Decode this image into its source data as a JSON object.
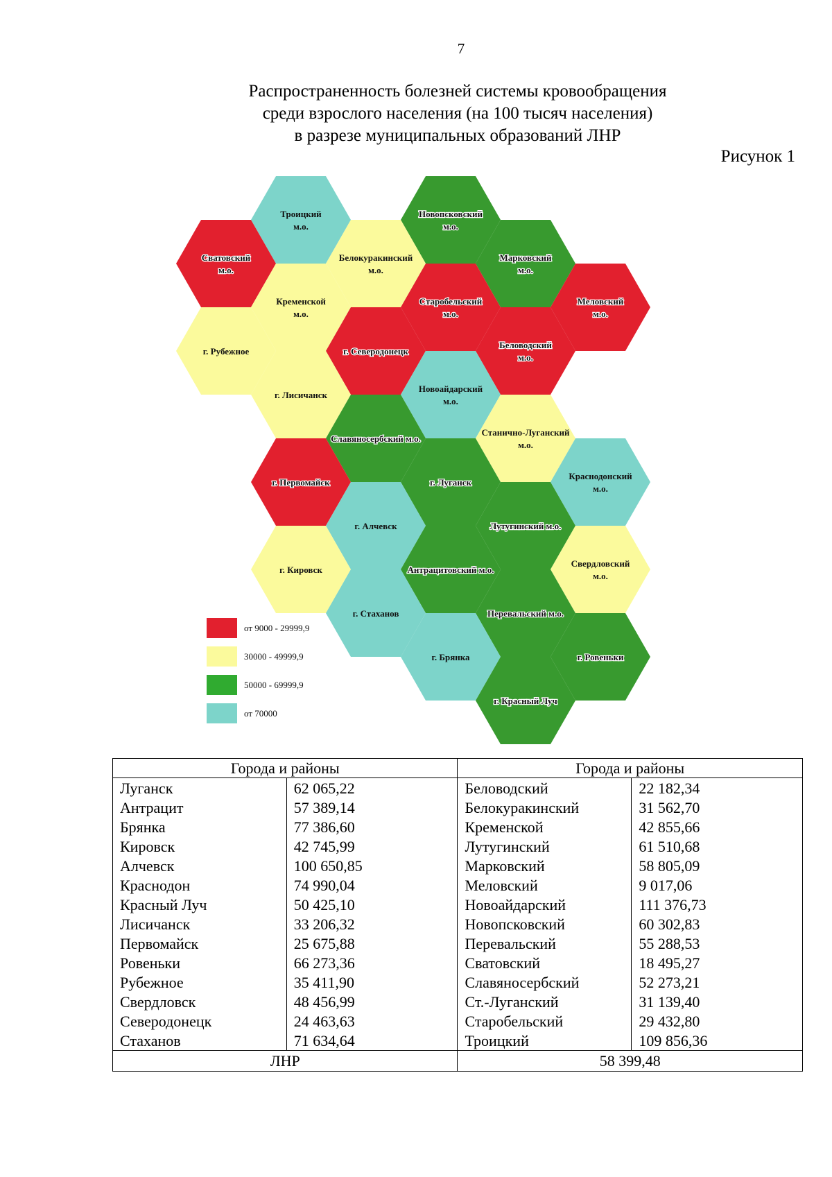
{
  "page_number": "7",
  "title_lines": [
    "Распространенность болезней системы кровообращения",
    "среди взрослого населения (на 100 тысяч населения)",
    "в разрезе муниципальных образований ЛНР"
  ],
  "figure_label": "Рисунок 1",
  "colors": {
    "red": "#e2202e",
    "yellow": "#fbfa9c",
    "green": "#389a2f",
    "teal": "#7dd4ca",
    "legend_green": "#30ab30"
  },
  "map": {
    "hexes": [
      {
        "id": "troitsky",
        "lines": [
          "Троицкий",
          "м.о."
        ],
        "color": "teal"
      },
      {
        "id": "novopskovsky",
        "lines": [
          "Новопсковский",
          "м.о."
        ],
        "color": "green"
      },
      {
        "id": "svatovsky",
        "lines": [
          "Сватовский",
          "м.о."
        ],
        "color": "red"
      },
      {
        "id": "belokurakinsky",
        "lines": [
          "Белокуракинский",
          "м.о."
        ],
        "color": "yellow"
      },
      {
        "id": "markovsky",
        "lines": [
          "Марковский",
          "м.о."
        ],
        "color": "green"
      },
      {
        "id": "kremensky",
        "lines": [
          "Кременской",
          "м.о."
        ],
        "color": "yellow"
      },
      {
        "id": "starobelsky",
        "lines": [
          "Старобельский",
          "м.о."
        ],
        "color": "red"
      },
      {
        "id": "melovsky",
        "lines": [
          "Меловский",
          "м.о."
        ],
        "color": "red"
      },
      {
        "id": "rubezhnoe",
        "lines": [
          "г. Рубежное"
        ],
        "color": "yellow"
      },
      {
        "id": "severodonetsk",
        "lines": [
          "г. Северодонецк"
        ],
        "color": "red"
      },
      {
        "id": "belovodsky",
        "lines": [
          "Беловодский",
          "м.о."
        ],
        "color": "red"
      },
      {
        "id": "lisichansk",
        "lines": [
          "г. Лисичанск"
        ],
        "color": "yellow"
      },
      {
        "id": "novoaydarsky",
        "lines": [
          "Новоайдарский",
          "м.о."
        ],
        "color": "teal"
      },
      {
        "id": "slavyanoserbsky",
        "lines": [
          "Славяносербский м.о."
        ],
        "color": "green"
      },
      {
        "id": "stanichno-lugansky",
        "lines": [
          "Станично-Луганский",
          "м.о."
        ],
        "color": "yellow"
      },
      {
        "id": "pervomaysk",
        "lines": [
          "г. Первомайск"
        ],
        "color": "red"
      },
      {
        "id": "lugansk",
        "lines": [
          "г. Луганск"
        ],
        "color": "green"
      },
      {
        "id": "krasnodonsky",
        "lines": [
          "Краснодонский",
          "м.о."
        ],
        "color": "teal"
      },
      {
        "id": "alchevsk",
        "lines": [
          "г. Алчевск"
        ],
        "color": "teal"
      },
      {
        "id": "lutuginsky",
        "lines": [
          "Лутугинский м.о."
        ],
        "color": "green"
      },
      {
        "id": "kirovsk",
        "lines": [
          "г. Кировск"
        ],
        "color": "yellow"
      },
      {
        "id": "antratsitovsky",
        "lines": [
          "Антрацитовский м.о."
        ],
        "color": "green"
      },
      {
        "id": "sverdlovsky",
        "lines": [
          "Свердловский",
          "м.о."
        ],
        "color": "yellow"
      },
      {
        "id": "stakhanov",
        "lines": [
          "г. Стаханов"
        ],
        "color": "teal"
      },
      {
        "id": "perevalsky",
        "lines": [
          "Перевальский м.о."
        ],
        "color": "green"
      },
      {
        "id": "bryanka",
        "lines": [
          "г. Брянка"
        ],
        "color": "teal"
      },
      {
        "id": "rovenki",
        "lines": [
          "г. Ровеньки"
        ],
        "color": "green"
      },
      {
        "id": "krasny-luch",
        "lines": [
          "г. Красный Луч"
        ],
        "color": "green"
      }
    ],
    "legend": [
      {
        "label": "от 9000 - 29999,9",
        "color": "red"
      },
      {
        "label": "30000 - 49999,9",
        "color": "yellow"
      },
      {
        "label": "50000 - 69999,9",
        "color": "legend_green"
      },
      {
        "label": "от 70000",
        "color": "teal"
      }
    ]
  },
  "table": {
    "headers": [
      "Города и районы",
      "Города и районы"
    ],
    "rows": [
      [
        "Луганск",
        "62 065,22",
        "Беловодский",
        "22 182,34"
      ],
      [
        "Антрацит",
        "57 389,14",
        "Белокуракинский",
        "31 562,70"
      ],
      [
        "Брянка",
        "77 386,60",
        "Кременской",
        "42 855,66"
      ],
      [
        "Кировск",
        "42 745,99",
        "Лутугинский",
        "61 510,68"
      ],
      [
        "Алчевск",
        "100 650,85",
        "Марковский",
        "58 805,09"
      ],
      [
        "Краснодон",
        "74 990,04",
        "Меловский",
        "9 017,06"
      ],
      [
        "Красный Луч",
        "50 425,10",
        "Новоайдарский",
        "111 376,73"
      ],
      [
        "Лисичанск",
        "33 206,32",
        "Новопсковский",
        "60 302,83"
      ],
      [
        "Первомайск",
        "25 675,88",
        "Перевальский",
        "55 288,53"
      ],
      [
        "Ровеньки",
        "66 273,36",
        "Сватовский",
        "18 495,27"
      ],
      [
        "Рубежное",
        "35 411,90",
        "Славяносербский",
        "52 273,21"
      ],
      [
        "Свердловск",
        "48 456,99",
        "Ст.-Луганский",
        "31 139,40"
      ],
      [
        "Северодонецк",
        "24 463,63",
        "Старобельский",
        "29 432,80"
      ],
      [
        "Стаханов",
        "71 634,64",
        "Троицкий",
        "109 856,36"
      ]
    ],
    "total_label": "ЛНР",
    "total_value": "58 399,48"
  }
}
